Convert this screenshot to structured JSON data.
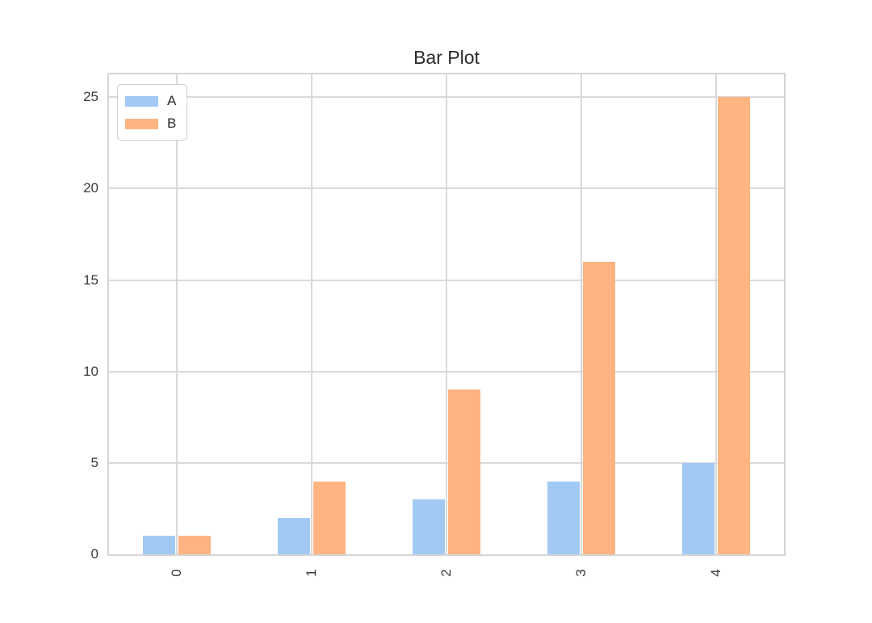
{
  "chart_data": {
    "type": "bar",
    "title": "Bar Plot",
    "xlabel": "",
    "ylabel": "",
    "categories": [
      "0",
      "1",
      "2",
      "3",
      "4"
    ],
    "series": [
      {
        "name": "A",
        "color": "#a1c9f4",
        "values": [
          1,
          2,
          3,
          4,
          5
        ]
      },
      {
        "name": "B",
        "color": "#ffb482",
        "values": [
          1,
          4,
          9,
          16,
          25
        ]
      }
    ],
    "yticks": [
      0,
      5,
      10,
      15,
      20,
      25
    ],
    "ylim": [
      0,
      26.25
    ],
    "x_tick_rotation": 90,
    "grid": true,
    "legend_position": "upper left",
    "style": {
      "background_color": "#ffffff",
      "grid_color": "#d9d9d9",
      "spine_color": "#d5d5d5",
      "text_color": "#2b2b2b"
    }
  }
}
